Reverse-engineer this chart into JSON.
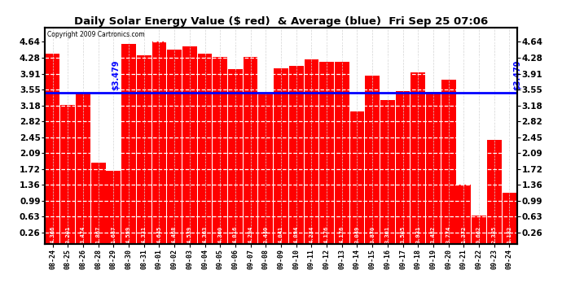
{
  "title": "Daily Solar Energy Value ($ red)  & Average (blue)  Fri Sep 25 07:06",
  "copyright": "Copyright 2009 Cartronics.com",
  "average": 3.479,
  "average_label": "$3.479",
  "bar_color": "#ff0000",
  "average_color": "#0000ff",
  "background_color": "#ffffff",
  "plot_bg_color": "#ffffff",
  "ylim_max": 4.97,
  "yticks": [
    0.26,
    0.63,
    0.99,
    1.36,
    1.72,
    2.09,
    2.45,
    2.82,
    3.18,
    3.55,
    3.91,
    4.28,
    4.64
  ],
  "categories": [
    "08-24",
    "08-25",
    "08-26",
    "08-28",
    "08-29",
    "08-30",
    "08-31",
    "09-01",
    "09-02",
    "09-03",
    "09-04",
    "09-05",
    "09-06",
    "09-07",
    "09-08",
    "09-09",
    "09-10",
    "09-11",
    "09-12",
    "09-13",
    "09-14",
    "09-15",
    "09-16",
    "09-17",
    "09-18",
    "09-19",
    "09-20",
    "09-21",
    "09-22",
    "09-23",
    "09-24"
  ],
  "values": [
    4.366,
    3.201,
    3.474,
    1.867,
    1.687,
    4.599,
    4.331,
    4.645,
    4.468,
    4.539,
    4.363,
    4.3,
    4.016,
    4.294,
    3.44,
    4.041,
    4.094,
    4.234,
    4.176,
    4.176,
    3.049,
    3.87,
    3.301,
    3.505,
    3.931,
    3.482,
    3.774,
    1.372,
    0.662,
    2.385,
    1.182
  ],
  "value_labels": [
    "4.366",
    "3.201",
    "3.474",
    "1.867",
    "1.687",
    "4.599",
    "4.331",
    "4.645",
    "4.468",
    "4.539",
    "4.363",
    "4.300",
    "4.016",
    "4.294",
    "3.440",
    "4.041",
    "4.094",
    "4.234",
    "4.176",
    "4.176",
    "3.049",
    "3.870",
    "3.301",
    "3.505",
    "3.931",
    "3.482",
    "3.774",
    "1.372",
    "0.662",
    "2.385",
    "1.182"
  ]
}
